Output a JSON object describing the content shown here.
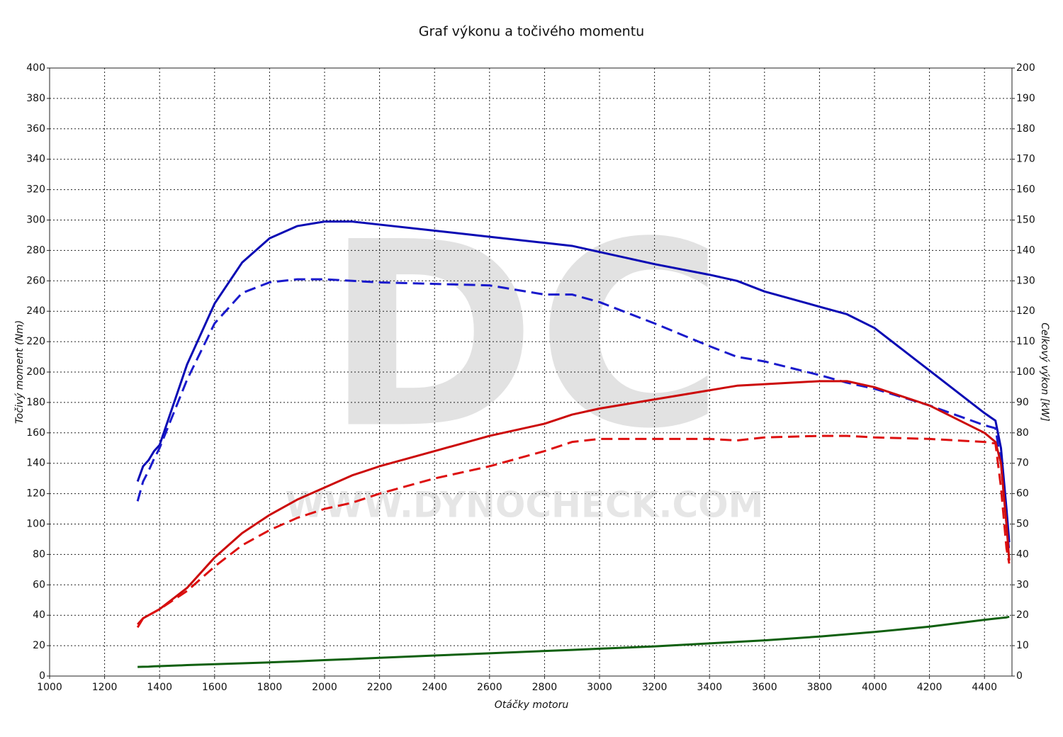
{
  "chart_data": {
    "type": "line",
    "title": "Graf výkonu a točivého momentu",
    "xlabel": "Otáčky motoru",
    "ylabel": "Točivý moment (Nm)",
    "y2label": "Celkový výkon [kW]",
    "watermark": "DC",
    "watermark_url": "WWW.DYNOCHECK.COM",
    "x": [
      1320,
      1340,
      1360,
      1380,
      1400,
      1500,
      1600,
      1700,
      1800,
      1900,
      2000,
      2100,
      2200,
      2400,
      2600,
      2800,
      2900,
      3000,
      3200,
      3400,
      3500,
      3600,
      3800,
      3900,
      4000,
      4200,
      4400,
      4440,
      4460,
      4480,
      4490
    ],
    "series": [
      {
        "color": "#0a0ab4",
        "style": "solid",
        "axis": "y",
        "values": [
          128,
          138,
          142,
          148,
          152,
          205,
          245,
          272,
          288,
          296,
          299,
          299,
          297,
          293,
          289,
          285,
          283,
          279,
          271,
          264,
          260,
          253,
          243,
          238,
          229,
          201,
          173,
          168,
          150,
          110,
          88
        ]
      },
      {
        "color": "#1a1acc",
        "style": "dashed",
        "axis": "y",
        "values": [
          115,
          128,
          135,
          143,
          150,
          195,
          232,
          252,
          259,
          261,
          261,
          260,
          259,
          258,
          257,
          251,
          251,
          246,
          232,
          217,
          210,
          207,
          198,
          193,
          189,
          178,
          165,
          163,
          140,
          100,
          82
        ]
      },
      {
        "color": "#cc0a0a",
        "style": "solid",
        "axis": "y2",
        "values": [
          17,
          19,
          20,
          21,
          22,
          29,
          39,
          47,
          53,
          58,
          62,
          66,
          69,
          74,
          79,
          83,
          86,
          88,
          91,
          94,
          95.5,
          96,
          97,
          97,
          95,
          89,
          80,
          77,
          70,
          50,
          38
        ]
      },
      {
        "color": "#dd1010",
        "style": "dashed",
        "axis": "y2",
        "values": [
          16,
          19,
          20,
          21,
          22,
          28,
          36,
          43,
          48,
          52,
          55,
          57,
          60,
          65,
          69,
          74,
          77,
          78,
          78,
          78,
          77.5,
          78.5,
          79,
          79,
          78.5,
          78,
          77,
          76.5,
          62,
          42,
          37
        ]
      },
      {
        "color": "#106010",
        "style": "solid",
        "axis": "y",
        "values": [
          6,
          6.1,
          6.2,
          6.4,
          6.5,
          7.2,
          7.8,
          8.4,
          9,
          9.7,
          10.5,
          11.2,
          12,
          13.5,
          15,
          16.5,
          17.2,
          18,
          19.5,
          21.5,
          22.5,
          23.5,
          26,
          27.5,
          29,
          32.5,
          37,
          37.8,
          38.2,
          38.6,
          39
        ]
      }
    ],
    "xlim": [
      1000,
      4500
    ],
    "xticks": [
      1000,
      1200,
      1400,
      1600,
      1800,
      2000,
      2200,
      2400,
      2600,
      2800,
      3000,
      3200,
      3400,
      3600,
      3800,
      4000,
      4200,
      4400
    ],
    "ylim": [
      0,
      400
    ],
    "yticks": [
      0,
      20,
      40,
      60,
      80,
      100,
      120,
      140,
      160,
      180,
      200,
      220,
      240,
      260,
      280,
      300,
      320,
      340,
      360,
      380,
      400
    ],
    "y2lim": [
      0,
      200
    ],
    "y2ticks": [
      0,
      10,
      20,
      30,
      40,
      50,
      60,
      70,
      80,
      90,
      100,
      110,
      120,
      130,
      140,
      150,
      160,
      170,
      180,
      190,
      200
    ],
    "grid": true
  }
}
